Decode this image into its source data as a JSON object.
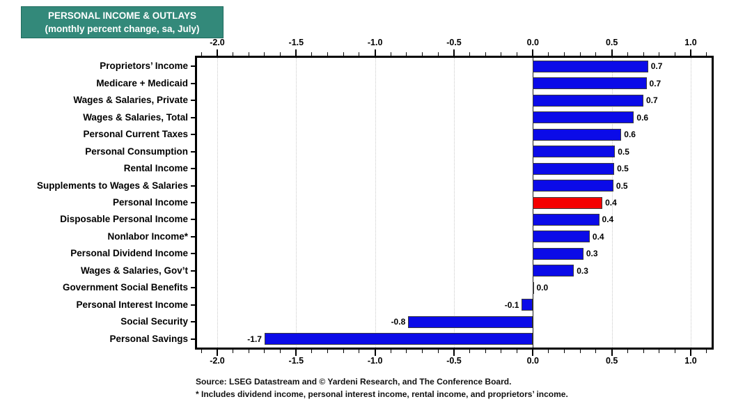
{
  "header": {
    "title": "PERSONAL INCOME & OUTLAYS",
    "subtitle": "(monthly percent change, sa, July)"
  },
  "chart_data": {
    "type": "bar",
    "orientation": "horizontal",
    "title": "PERSONAL INCOME & OUTLAYS (monthly percent change, sa, July)",
    "categories": [
      "Proprietors’ Income",
      "Medicare + Medicaid",
      "Wages & Salaries, Private",
      "Wages & Salaries, Total",
      "Personal Current Taxes",
      "Personal Consumption",
      "Rental Income",
      "Supplements to Wages & Salaries",
      "Personal Income",
      "Disposable Personal Income",
      "Nonlabor Income*",
      "Personal Dividend Income",
      "Wages & Salaries, Gov’t",
      "Government Social Benefits",
      "Personal Interest Income",
      "Social Security",
      "Personal Savings"
    ],
    "series": [
      {
        "name": "Monthly percent change, sa, July",
        "values": [
          0.7,
          0.7,
          0.7,
          0.6,
          0.6,
          0.5,
          0.5,
          0.5,
          0.4,
          0.4,
          0.4,
          0.3,
          0.3,
          0.0,
          -0.1,
          -0.8,
          -1.7
        ],
        "labels": [
          "0.7",
          "0.7",
          "0.7",
          "0.6",
          "0.6",
          "0.5",
          "0.5",
          "0.5",
          "0.4",
          "0.4",
          "0.4",
          "0.3",
          "0.3",
          "0.0",
          "-0.1",
          "-0.8",
          "-1.7"
        ],
        "plot_values": [
          0.73,
          0.72,
          0.7,
          0.64,
          0.56,
          0.52,
          0.515,
          0.51,
          0.44,
          0.42,
          0.36,
          0.32,
          0.26,
          0.005,
          -0.07,
          -0.79,
          -1.7
        ]
      }
    ],
    "highlight": {
      "category": "Personal Income",
      "index": 8,
      "color": "#f40000"
    },
    "bar_color": "#0b0be8",
    "xlim": [
      -2.13,
      1.13
    ],
    "x_major_ticks": [
      -2.0,
      -1.5,
      -1.0,
      -0.5,
      0.0,
      0.5,
      1.0
    ],
    "x_major_tick_labels": [
      "-2.0",
      "-1.5",
      "-1.0",
      "-0.5",
      "0.0",
      "0.5",
      "1.0"
    ],
    "x_minor_tick_step": 0.1,
    "grid": {
      "vertical_dotted_at_major": true,
      "solid_zero_line": true
    },
    "axis_positions": [
      "top",
      "bottom"
    ],
    "legend": "none"
  },
  "footer": {
    "source": "Source: LSEG Datastream and © Yardeni Research, and The Conference Board.",
    "footnote": "* Includes dividend income, personal interest income, rental income, and proprietors’ income."
  },
  "colors": {
    "title_bg": "#33897a",
    "title_text": "#ffffff",
    "bar_blue": "#0b0be8",
    "bar_red": "#f40000",
    "grid_dotted": "#c9c9c9",
    "zero_line": "#1a1a1a",
    "frame_border": "#000000"
  }
}
